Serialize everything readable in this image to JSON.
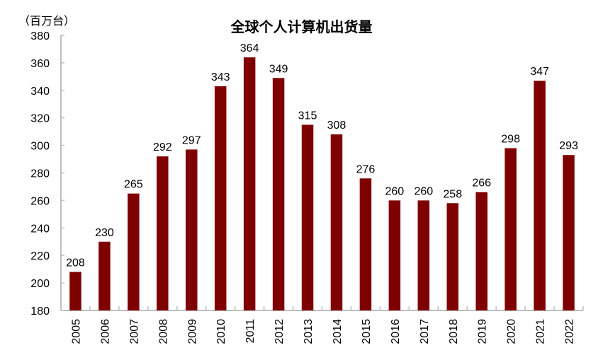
{
  "chart": {
    "title": "全球个人计算机出货量",
    "unit_label": "（百万台）"
  },
  "chart_data": {
    "type": "bar",
    "title": "全球个人计算机出货量",
    "xlabel": "",
    "ylabel": "（百万台）",
    "categories": [
      "2005",
      "2006",
      "2007",
      "2008",
      "2009",
      "2010",
      "2011",
      "2012",
      "2013",
      "2014",
      "2015",
      "2016",
      "2017",
      "2018",
      "2019",
      "2020",
      "2021",
      "2022"
    ],
    "values": [
      208,
      230,
      265,
      292,
      297,
      343,
      364,
      349,
      315,
      308,
      276,
      260,
      260,
      258,
      266,
      298,
      347,
      293
    ],
    "ylim": [
      180,
      380
    ],
    "yticks": [
      180,
      200,
      220,
      240,
      260,
      280,
      300,
      320,
      340,
      360,
      380
    ],
    "grid": false,
    "legend": "none",
    "data_labels": true,
    "bar_color": "#7F0000",
    "axis_color": "#BFBFBF"
  }
}
